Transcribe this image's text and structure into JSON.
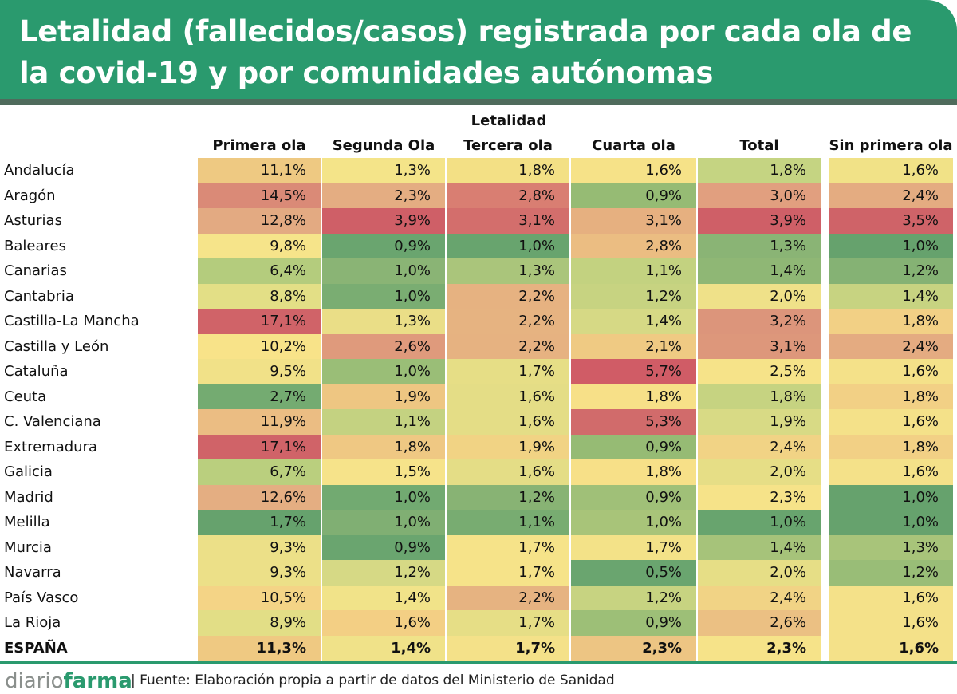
{
  "title": "Letalidad (fallecidos/casos) registrada por cada ola de la covid-19 y por comunidades autónomas",
  "chart_data": {
    "type": "table",
    "group_label": "Letalidad",
    "columns": [
      "Primera ola",
      "Segunda Ola",
      "Tercera ola",
      "Cuarta ola",
      "Total",
      "Sin primera ola"
    ],
    "rows": [
      {
        "label": "Andalucía",
        "values": [
          "11,1%",
          "1,3%",
          "1,8%",
          "1,6%",
          "1,8%",
          "1,6%"
        ],
        "colors": [
          "#eec982",
          "#f4e489",
          "#f3e085",
          "#f6e288",
          "#c5d482",
          "#f1e287"
        ]
      },
      {
        "label": "Aragón",
        "values": [
          "14,5%",
          "2,3%",
          "2,8%",
          "0,9%",
          "3,0%",
          "2,4%"
        ],
        "colors": [
          "#da8a77",
          "#e4ad82",
          "#d97e72",
          "#96bb74",
          "#e19f7f",
          "#e4ac81"
        ]
      },
      {
        "label": "Asturias",
        "values": [
          "12,8%",
          "3,9%",
          "3,1%",
          "3,1%",
          "3,9%",
          "3,5%"
        ],
        "colors": [
          "#e3aa82",
          "#cf5f67",
          "#d36e6c",
          "#e6b080",
          "#cf5f67",
          "#cf6368"
        ]
      },
      {
        "label": "Baleares",
        "values": [
          "9,8%",
          "0,9%",
          "1,0%",
          "2,8%",
          "1,3%",
          "1,0%"
        ],
        "colors": [
          "#f6e48a",
          "#6aa56f",
          "#68a46e",
          "#ebbd82",
          "#8ab475",
          "#66a26d"
        ]
      },
      {
        "label": "Canarias",
        "values": [
          "6,4%",
          "1,0%",
          "1,3%",
          "1,1%",
          "1,4%",
          "1,2%"
        ],
        "colors": [
          "#b4cc7d",
          "#8ab475",
          "#aac57b",
          "#c3d280",
          "#8fb775",
          "#85b274"
        ]
      },
      {
        "label": "Cantabria",
        "values": [
          "8,8%",
          "1,0%",
          "2,2%",
          "1,2%",
          "2,0%",
          "1,4%"
        ],
        "colors": [
          "#e3df86",
          "#7aad72",
          "#e6b281",
          "#c7d381",
          "#efe189",
          "#c7d381"
        ]
      },
      {
        "label": "Castilla-La Mancha",
        "values": [
          "17,1%",
          "1,3%",
          "2,2%",
          "1,4%",
          "3,2%",
          "1,8%"
        ],
        "colors": [
          "#d06368",
          "#eade87",
          "#e6b381",
          "#d6d985",
          "#dc957b",
          "#f2d085"
        ]
      },
      {
        "label": "Castilla y León",
        "values": [
          "10,2%",
          "2,6%",
          "2,2%",
          "2,1%",
          "3,1%",
          "2,4%"
        ],
        "colors": [
          "#f8e389",
          "#df9a7c",
          "#e6b281",
          "#efca83",
          "#dd977b",
          "#e4ab81"
        ]
      },
      {
        "label": "Cataluña",
        "values": [
          "9,5%",
          "1,0%",
          "1,7%",
          "5,7%",
          "2,5%",
          "1,6%"
        ],
        "colors": [
          "#f1e188",
          "#9abe77",
          "#e6de86",
          "#d05c66",
          "#f6e389",
          "#f4e189"
        ]
      },
      {
        "label": "Ceuta",
        "values": [
          "2,7%",
          "1,9%",
          "1,6%",
          "1,8%",
          "1,8%",
          "1,8%"
        ],
        "colors": [
          "#74ab71",
          "#eec682",
          "#e4dd86",
          "#f7e088",
          "#c6d381",
          "#f2d085"
        ]
      },
      {
        "label": "C. Valenciana",
        "values": [
          "11,9%",
          "1,1%",
          "1,6%",
          "5,3%",
          "1,9%",
          "1,6%"
        ],
        "colors": [
          "#ebbd83",
          "#c4d281",
          "#e4dd86",
          "#d16b6b",
          "#d8da85",
          "#f4e189"
        ]
      },
      {
        "label": "Extremadura",
        "values": [
          "17,1%",
          "1,8%",
          "1,9%",
          "0,9%",
          "2,4%",
          "1,8%"
        ],
        "colors": [
          "#d06368",
          "#efc883",
          "#f1d384",
          "#96bb74",
          "#f1d385",
          "#f2d085"
        ]
      },
      {
        "label": "Galicia",
        "values": [
          "6,7%",
          "1,5%",
          "1,6%",
          "1,8%",
          "2,0%",
          "1,6%"
        ],
        "colors": [
          "#bacf7e",
          "#f6e38a",
          "#e4dd86",
          "#f7e088",
          "#e6de86",
          "#f4e189"
        ]
      },
      {
        "label": "Madrid",
        "values": [
          "12,6%",
          "1,0%",
          "1,2%",
          "0,9%",
          "2,3%",
          "1,0%"
        ],
        "colors": [
          "#e4ae82",
          "#72aa71",
          "#88b374",
          "#a0c078",
          "#f6e389",
          "#66a26d"
        ]
      },
      {
        "label": "Melilla",
        "values": [
          "1,7%",
          "1,0%",
          "1,1%",
          "1,0%",
          "1,0%",
          "1,0%"
        ],
        "colors": [
          "#66a26d",
          "#80af73",
          "#78ac71",
          "#a8c479",
          "#68a46e",
          "#66a26d"
        ]
      },
      {
        "label": "Murcia",
        "values": [
          "9,3%",
          "0,9%",
          "1,7%",
          "1,7%",
          "1,4%",
          "1,3%"
        ],
        "colors": [
          "#ece088",
          "#6aa56f",
          "#f6e389",
          "#f3e288",
          "#a6c37a",
          "#a8c47a"
        ]
      },
      {
        "label": "Navarra",
        "values": [
          "9,3%",
          "1,2%",
          "1,7%",
          "0,5%",
          "2,0%",
          "1,2%"
        ],
        "colors": [
          "#ece088",
          "#d6d985",
          "#f6e389",
          "#6aa56f",
          "#e6de86",
          "#99bd77"
        ]
      },
      {
        "label": "País Vasco",
        "values": [
          "10,5%",
          "1,4%",
          "2,2%",
          "1,2%",
          "2,4%",
          "1,6%"
        ],
        "colors": [
          "#f4d486",
          "#f1e389",
          "#e6b381",
          "#c7d381",
          "#f1d385",
          "#f4e189"
        ]
      },
      {
        "label": "La Rioja",
        "values": [
          "8,9%",
          "1,6%",
          "1,7%",
          "0,9%",
          "2,6%",
          "1,6%"
        ],
        "colors": [
          "#e2de86",
          "#f3cf84",
          "#e6de86",
          "#9dbf77",
          "#ebc083",
          "#f4e189"
        ]
      },
      {
        "label": "ESPAÑA",
        "values": [
          "11,3%",
          "1,4%",
          "1,7%",
          "2,3%",
          "2,3%",
          "1,6%"
        ],
        "colors": [
          "#efc982",
          "#f0e289",
          "#f4e189",
          "#edc583",
          "#f6e389",
          "#f4e189"
        ],
        "bold": true
      }
    ]
  },
  "footer": {
    "logo_part1": "diario",
    "logo_part2": "farma",
    "source": "| Fuente: Elaboración propia a partir de datos del Ministerio de Sanidad"
  }
}
